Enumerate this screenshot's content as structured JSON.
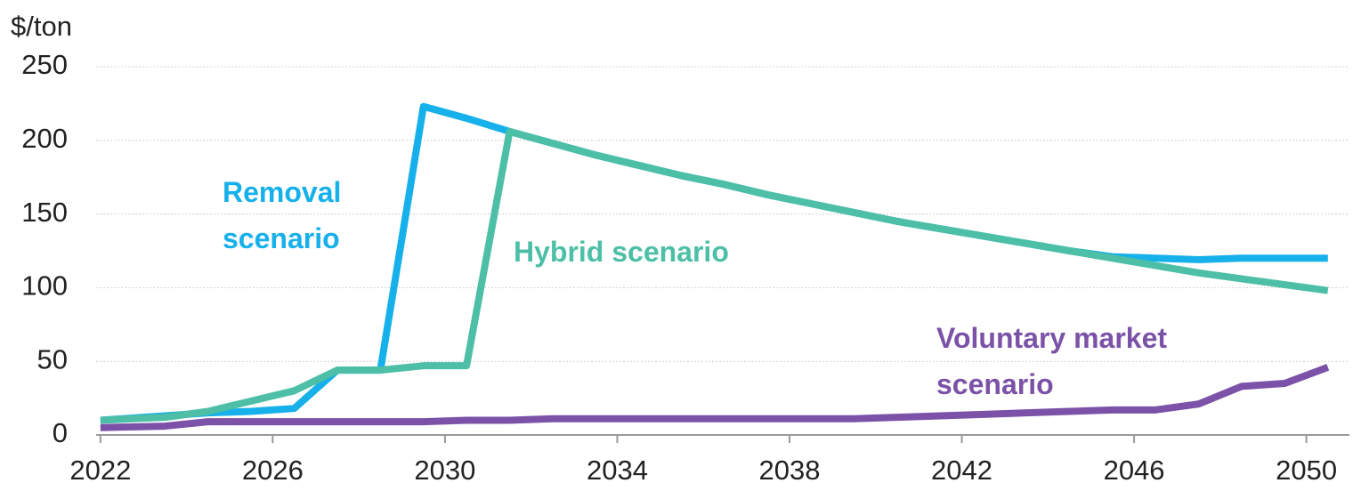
{
  "chart_data": {
    "type": "line",
    "y_label": "$/ton",
    "x": [
      2022,
      2023.5,
      2024.5,
      2025.5,
      2026.5,
      2027.5,
      2028.5,
      2029.5,
      2030.5,
      2031.5,
      2032.5,
      2033.5,
      2034.5,
      2035.5,
      2036.5,
      2037.5,
      2038.5,
      2039.5,
      2040.5,
      2041.5,
      2042.5,
      2043.5,
      2044.5,
      2045.5,
      2046.5,
      2047.5,
      2048.5,
      2049.5,
      2050.5
    ],
    "series": [
      {
        "name": "Removal scenario",
        "color": "#16b0ea",
        "values": [
          10,
          13,
          15,
          16,
          18,
          44,
          44,
          223,
          215,
          206,
          198,
          190,
          183,
          176,
          170,
          163,
          157,
          151,
          145,
          140,
          135,
          130,
          125,
          121,
          120,
          119,
          120,
          120,
          120
        ]
      },
      {
        "name": "Hybrid scenario",
        "color": "#4cbfa6",
        "values": [
          10,
          12,
          16,
          23,
          30,
          44,
          44,
          47,
          47,
          206,
          198,
          190,
          183,
          176,
          170,
          163,
          157,
          151,
          145,
          140,
          135,
          130,
          125,
          120,
          115,
          110,
          106,
          102,
          98
        ]
      },
      {
        "name": "Voluntary market scenario",
        "color": "#7b52a8",
        "values": [
          5,
          6,
          9,
          9,
          9,
          9,
          9,
          9,
          10,
          10,
          11,
          11,
          11,
          11,
          11,
          11,
          11,
          11,
          12,
          13,
          14,
          15,
          16,
          17,
          17,
          21,
          33,
          35,
          46
        ]
      }
    ],
    "xlim": [
      2021.9,
      2051
    ],
    "xticks": [
      2022,
      2026,
      2030,
      2034,
      2038,
      2042,
      2046,
      2050
    ],
    "ylim": [
      0,
      250
    ],
    "yticks": [
      0,
      50,
      100,
      150,
      200,
      250
    ],
    "grid": true
  }
}
